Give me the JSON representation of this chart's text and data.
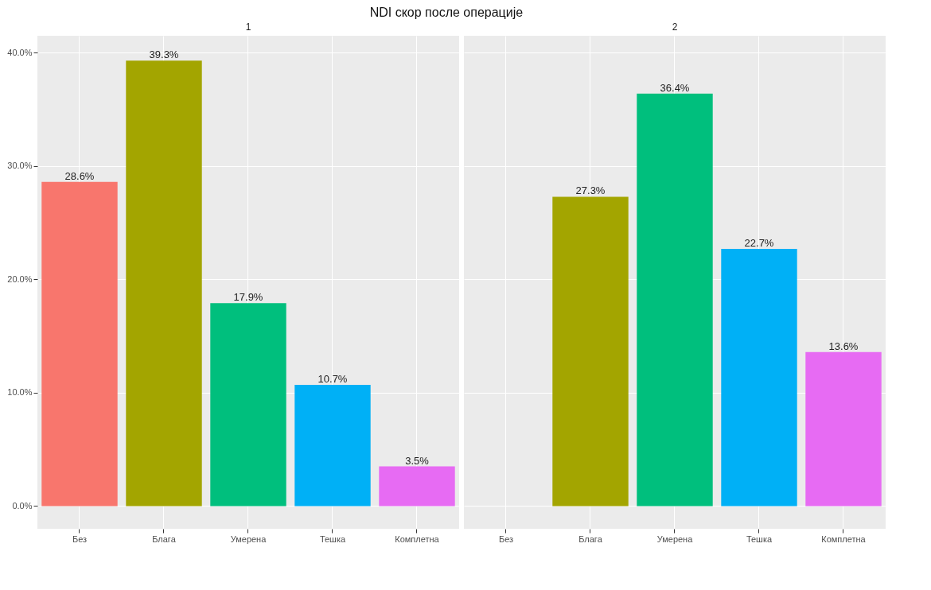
{
  "chart_data": [
    {
      "type": "bar",
      "title": "NDI скор после операције",
      "subtitle": "1",
      "categories": [
        "Без",
        "Блага",
        "Умерена",
        "Тешка",
        "Комплетна"
      ],
      "values": [
        28.6,
        39.3,
        17.9,
        10.7,
        3.5
      ],
      "value_labels": [
        "28.6%",
        "39.3%",
        "17.9%",
        "10.7%",
        "3.5%"
      ],
      "colors": [
        "#f8766d",
        "#a3a500",
        "#00bf7d",
        "#00b0f6",
        "#e76bf3"
      ],
      "ylim": [
        -2,
        41.5
      ],
      "yticks": [
        {
          "value": 0,
          "label": "0.0%"
        },
        {
          "value": 10,
          "label": "10.0%"
        },
        {
          "value": 20,
          "label": "20.0%"
        },
        {
          "value": 30,
          "label": "30.0%"
        },
        {
          "value": 40,
          "label": "40.0%"
        }
      ],
      "grid": true
    },
    {
      "type": "bar",
      "subtitle": "2",
      "categories": [
        "Без",
        "Блага",
        "Умерена",
        "Тешка",
        "Комплетна"
      ],
      "values": [
        null,
        27.3,
        36.4,
        22.7,
        13.6
      ],
      "value_labels": [
        null,
        "27.3%",
        "36.4%",
        "22.7%",
        "13.6%"
      ],
      "colors": [
        "#f8766d",
        "#a3a500",
        "#00bf7d",
        "#00b0f6",
        "#e76bf3"
      ],
      "ylim": [
        -2,
        41.5
      ],
      "yticks": [
        0,
        10,
        20,
        30,
        40
      ],
      "grid": true,
      "tick_labels": "x"
    }
  ]
}
